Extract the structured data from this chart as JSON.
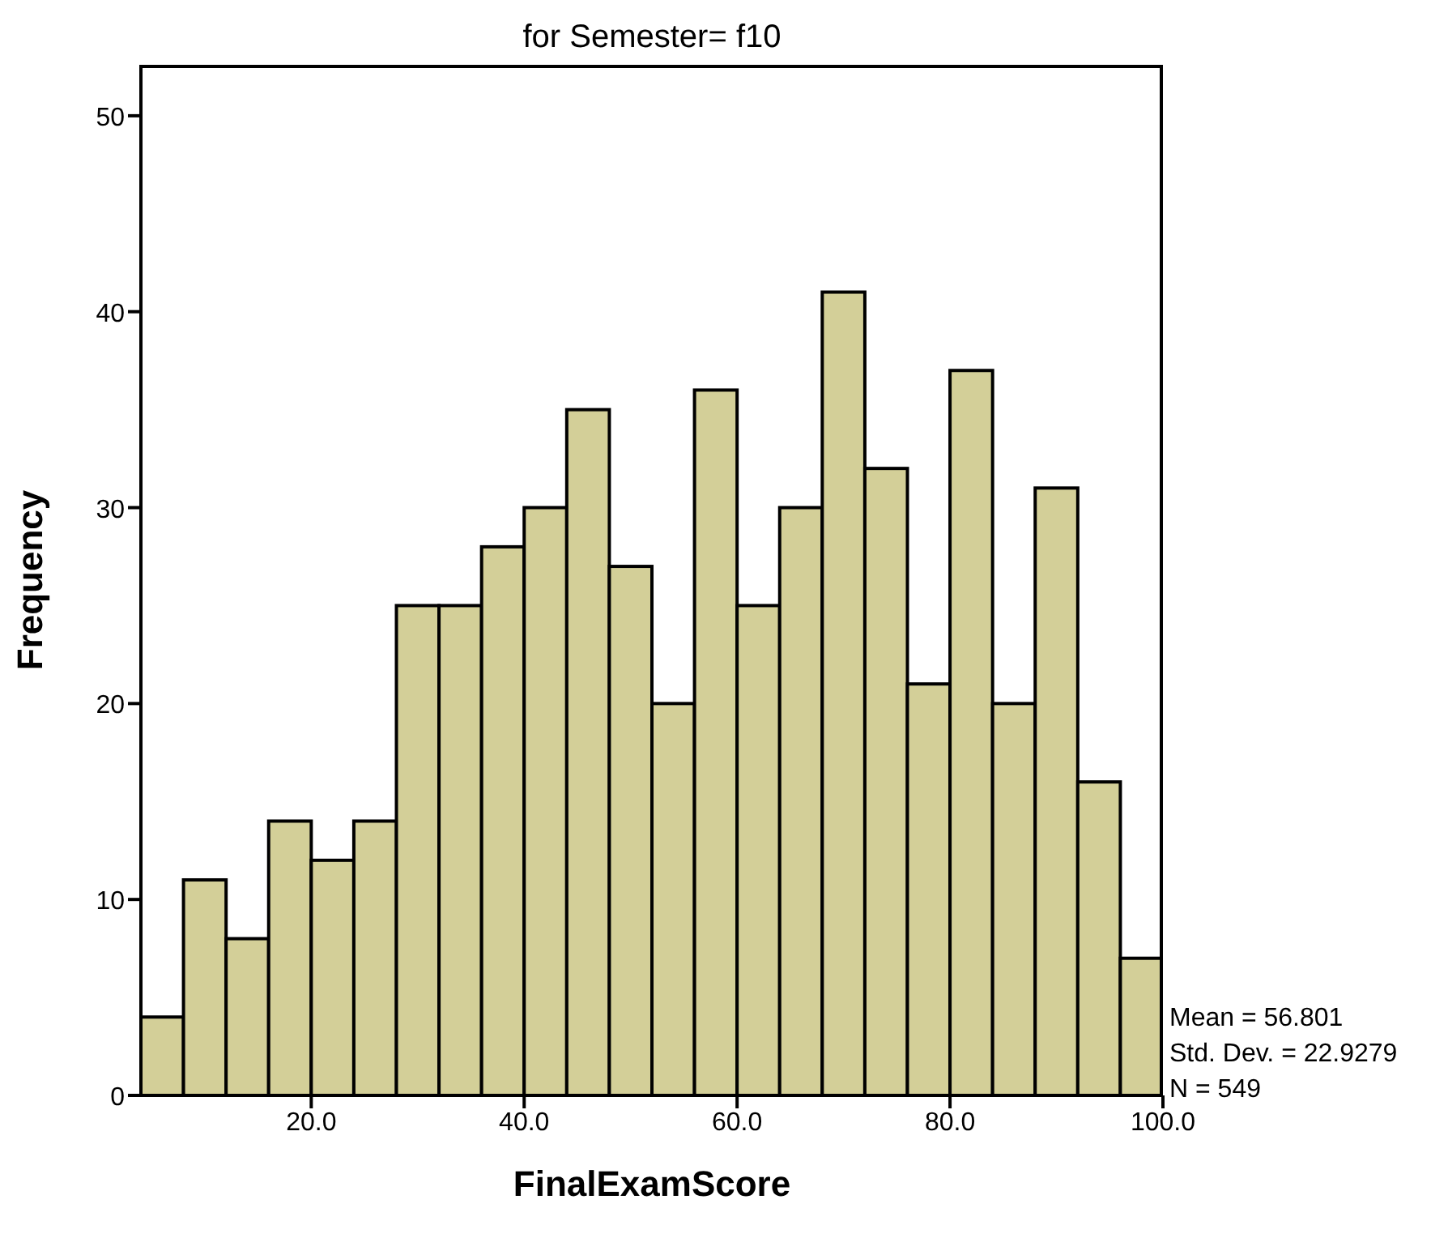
{
  "chart_data": {
    "type": "histogram",
    "title": "for Semester= f10",
    "xlabel": "FinalExamScore",
    "ylabel": "Frequency",
    "bins": [
      4,
      8,
      12,
      16,
      20,
      24,
      28,
      32,
      36,
      40,
      44,
      48,
      52,
      56,
      60,
      64,
      68,
      72,
      76,
      80,
      84,
      88,
      92,
      96,
      100
    ],
    "values": [
      4,
      11,
      8,
      14,
      12,
      14,
      25,
      25,
      28,
      30,
      35,
      27,
      20,
      36,
      25,
      30,
      41,
      32,
      21,
      37,
      20,
      31,
      16,
      7
    ],
    "color": "#d3cf98",
    "xlim": [
      4,
      100
    ],
    "xticks": [
      {
        "value": 20,
        "label": "20.0"
      },
      {
        "value": 40,
        "label": "40.0"
      },
      {
        "value": 60,
        "label": "60.0"
      },
      {
        "value": 80,
        "label": "80.0"
      },
      {
        "value": 100,
        "label": "100.0"
      }
    ],
    "ylim": [
      0,
      52.6
    ],
    "yticks": [
      0,
      10,
      20,
      30,
      40,
      50
    ],
    "grid": false,
    "legend": false,
    "annotations": [
      "Mean = 56.801",
      "Std. Dev. = 22.9279",
      "N = 549"
    ]
  }
}
